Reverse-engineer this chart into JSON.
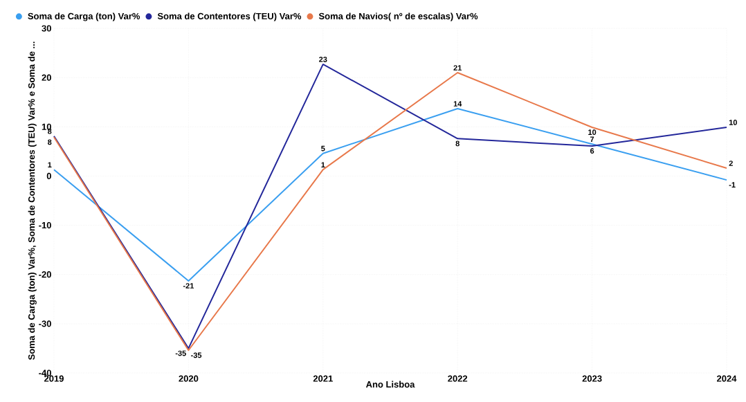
{
  "chart_data": {
    "type": "line",
    "xlabel": "Ano Lisboa",
    "ylabel": "Soma de Carga (ton) Var%, Soma de Contentores (TEU) Var% e Soma de ...",
    "categories": [
      "2019",
      "2020",
      "2021",
      "2022",
      "2023",
      "2024"
    ],
    "series": [
      {
        "name": "Soma de Carga (ton) Var%",
        "color": "#3a9ff0",
        "values": [
          1.3,
          -21.3,
          4.6,
          13.7,
          6.5,
          -0.8
        ],
        "value_labels": [
          "1",
          "-21",
          "5",
          "14",
          "7",
          "-1"
        ]
      },
      {
        "name": "Soma de Contentores (TEU) Var%",
        "color": "#23279a",
        "values": [
          8.1,
          -35.0,
          22.7,
          7.6,
          6.1,
          9.9
        ],
        "value_labels": [
          "8",
          "-35",
          "23",
          "8",
          "6",
          "10"
        ]
      },
      {
        "name": "Soma de Navios( nº de escalas) Var%",
        "color": "#e8784a",
        "values": [
          7.9,
          -35.4,
          1.3,
          21.0,
          9.9,
          1.6
        ],
        "value_labels": [
          "8",
          "-35",
          "1",
          "21",
          "10",
          "2"
        ]
      }
    ],
    "ylim": [
      -40,
      30
    ],
    "yticks": [
      -40,
      -30,
      -20,
      -10,
      0,
      10,
      20,
      30
    ],
    "grid": true,
    "legend": "top left",
    "marker": "none",
    "line_style": "solid"
  }
}
